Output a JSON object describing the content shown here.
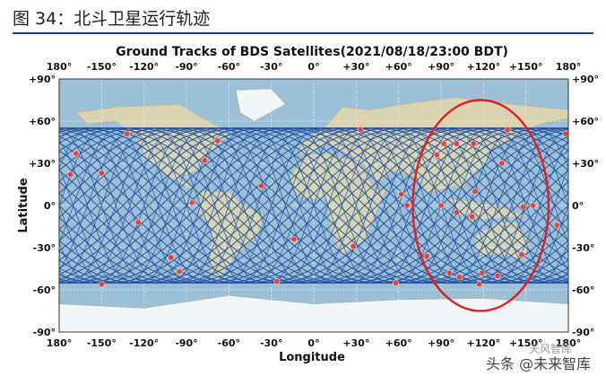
{
  "caption": "图 34：北斗卫星运行轨迹",
  "watermark": {
    "top_text": "天风智库",
    "bottom_text": "头条 @未来智库"
  },
  "colors": {
    "ocean": "#9cc0d8",
    "land": "#d9d3b0",
    "ice": "#f2f6f8",
    "track": "#1d4f9e",
    "sat_marker": "#e0443c",
    "highlight_ellipse": "#e02020",
    "caption_rule": "#1f3c88"
  },
  "chart_data": {
    "type": "scatter",
    "title": "Ground Tracks of BDS Satellites(2021/08/18/23:00 BDT)",
    "xlabel": "Longitude",
    "ylabel": "Latitude",
    "xlim": [
      -180,
      180
    ],
    "ylim": [
      -90,
      90
    ],
    "xticks": [
      -180,
      -150,
      -120,
      -90,
      -60,
      -30,
      0,
      30,
      60,
      90,
      120,
      150,
      180
    ],
    "xtick_labels": [
      "180°",
      "-150°",
      "-120°",
      "-90°",
      "-60°",
      "-30°",
      "0°",
      "+30°",
      "+60°",
      "+90°",
      "+120°",
      "+150°",
      "180°"
    ],
    "yticks": [
      90,
      60,
      30,
      0,
      -30,
      -60,
      -90
    ],
    "ytick_labels": [
      "+90°",
      "+60°",
      "+30°",
      "0°",
      "-30°",
      "-60°",
      "-90°"
    ],
    "grid": true,
    "background": "world map",
    "track_band_lat": [
      -55,
      55
    ],
    "highlight_region": {
      "center_lon": 118,
      "center_lat": 0,
      "lon_radius": 48,
      "lat_radius": 75
    },
    "series": [
      {
        "points": [
          {
            "x": -168,
            "y": 37
          },
          {
            "x": -172,
            "y": 22
          },
          {
            "x": -150,
            "y": 23
          },
          {
            "x": -132,
            "y": 51
          },
          {
            "x": -124,
            "y": -12
          },
          {
            "x": -101,
            "y": -37
          },
          {
            "x": -95,
            "y": -47
          },
          {
            "x": -68,
            "y": 46
          },
          {
            "x": -77,
            "y": 32
          },
          {
            "x": -86,
            "y": 2
          },
          {
            "x": -37,
            "y": 14
          },
          {
            "x": -14,
            "y": -24
          },
          {
            "x": 33,
            "y": 54
          },
          {
            "x": 28,
            "y": -29
          },
          {
            "x": -150,
            "y": -56
          },
          {
            "x": -26,
            "y": -54
          },
          {
            "x": 58,
            "y": -55
          },
          {
            "x": 62,
            "y": 8
          },
          {
            "x": 66,
            "y": 0
          },
          {
            "x": 87,
            "y": 36
          },
          {
            "x": 92,
            "y": 44
          },
          {
            "x": 101,
            "y": 44
          },
          {
            "x": 113,
            "y": 44
          },
          {
            "x": 137,
            "y": 54
          },
          {
            "x": 133,
            "y": 30
          },
          {
            "x": 114,
            "y": 10
          },
          {
            "x": 101,
            "y": -5
          },
          {
            "x": 112,
            "y": -8
          },
          {
            "x": 80,
            "y": -36
          },
          {
            "x": 96,
            "y": -48
          },
          {
            "x": 103,
            "y": -51
          },
          {
            "x": 119,
            "y": -48
          },
          {
            "x": 130,
            "y": -50
          },
          {
            "x": 117,
            "y": -56
          },
          {
            "x": 147,
            "y": -35
          },
          {
            "x": 155,
            "y": 0
          },
          {
            "x": 172,
            "y": -14
          },
          {
            "x": 178,
            "y": 51
          },
          {
            "x": 148,
            "y": -1
          },
          {
            "x": 90,
            "y": 0
          }
        ]
      }
    ]
  }
}
